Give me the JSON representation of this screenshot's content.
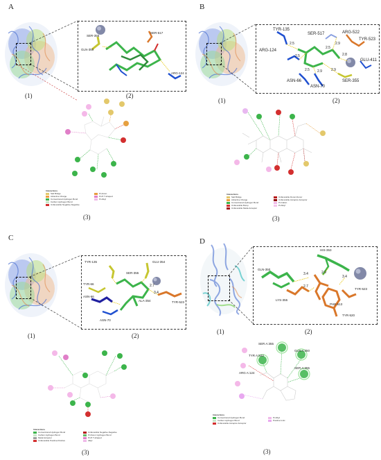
{
  "panels": {
    "A": {
      "letter": "A",
      "captions": {
        "one": "(1)",
        "two": "(2)",
        "three": "(3)"
      },
      "residues": [
        "SER-355",
        "GLN-350",
        "SER-517",
        "ARG-124"
      ],
      "legend_title": "Interactions",
      "legend": [
        "Salt Bridge",
        "Attractive Charge",
        "Conventional Hydrogen Bond",
        "Carbon Hydrogen Bond",
        "Unfavorable Negative-Negative",
        "Pi-Anion",
        "Pi-Pi T-shaped",
        "Pi-Alkyl"
      ],
      "legend_colors": [
        "#e3c86b",
        "#f0a040",
        "#3cb44b",
        "#c8e6c8",
        "#d32f2f",
        "#e89a40",
        "#e07fc8",
        "#f0b8e8"
      ]
    },
    "B": {
      "letter": "B",
      "captions": {
        "one": "(1)",
        "two": "(2)",
        "three": "(3)"
      },
      "residues": [
        "TYR-135",
        "SER-517",
        "ARG-522",
        "TYR-523",
        "ARG-124",
        "GLU-411",
        "ASN-66",
        "ASN-70",
        "SER-355"
      ],
      "distances": [
        "2.5",
        "2.5",
        "2.9",
        "2.8",
        "2.5",
        "2.5",
        "2.9",
        "2.9"
      ],
      "legend_title": "Interactions",
      "legend": [
        "Salt Bridge",
        "Attractive Charge",
        "Conventional Hydrogen Bond",
        "Unfavorable Bump",
        "Unfavorable Metal-Acceptor",
        "Unfavorable Donor-Donor",
        "Unfavorable Acceptor-Acceptor",
        "Pi-Cation",
        "Pi-Alkyl"
      ],
      "legend_colors": [
        "#e3c86b",
        "#f0a040",
        "#3cb44b",
        "#d32f2f",
        "#a01818",
        "#b71c1c",
        "#8e0000",
        "#f0b8e8",
        "#f5c6ec"
      ]
    },
    "C": {
      "letter": "C",
      "captions": {
        "one": "(1)",
        "two": "(2)",
        "three": "(3)"
      },
      "residues": [
        "TYR-135",
        "SER-355",
        "GLU-354",
        "TYR-66",
        "ASN-66",
        "ASN-70",
        "ALA-354",
        "TYR-523"
      ],
      "distances": [
        "2.7",
        "3.4"
      ],
      "legend_title": "Interactions",
      "legend": [
        "Conventional Hydrogen Bond",
        "Carbon Hydrogen Bond",
        "Metal Acceptor",
        "Unfavorable Positive-Positive",
        "Unfavorable Negative-Negative",
        "Pi-Donor Hydrogen Bond",
        "Pi-Pi T-shaped",
        "Alkyl"
      ],
      "legend_colors": [
        "#3cb44b",
        "#c8e6c8",
        "#9e9e9e",
        "#d32f2f",
        "#b71c1c",
        "#66bb6a",
        "#e07fc8",
        "#f0b8e8"
      ]
    },
    "D": {
      "letter": "D",
      "captions": {
        "one": "(1)",
        "two": "(2)",
        "three": "(3)"
      },
      "residues": [
        "GLN-350",
        "HIS-353",
        "LYS-355",
        "TYR-523",
        "PHE-513",
        "TYR-520"
      ],
      "distances": [
        "3.4",
        "2.9",
        "2.7",
        "3.4"
      ],
      "ligand_labels": [
        "SER A:355",
        "TYR A:523",
        "GLN A:350",
        "ARG A:124",
        "SER A:355"
      ],
      "legend_title": "Interactions",
      "legend": [
        "Conventional Hydrogen Bond",
        "Carbon Hydrogen Bond",
        "Unfavorable Acceptor-Acceptor",
        "Pi-Alkyl",
        "Positive Ionic"
      ],
      "legend_colors": [
        "#3cb44b",
        "#c8e6c8",
        "#d32f2f",
        "#f0b8e8",
        "#e8a8f0"
      ]
    }
  }
}
